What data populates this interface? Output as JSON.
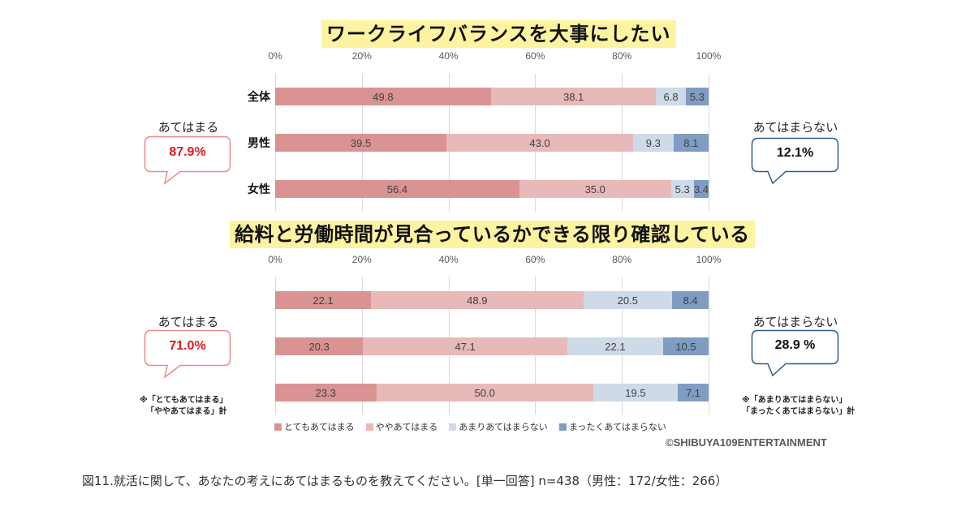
{
  "colors": {
    "very_true": "#d99393",
    "somewhat_true": "#e8b9b9",
    "not_very_true": "#cfdae8",
    "not_true_at_all": "#7f9cc2",
    "agree_box_border": "#ef8a8a",
    "agree_value": "#e01b1b",
    "disagree_box_border": "#2f5b8c",
    "disagree_value": "#111111",
    "title_highlight": "#fdf3a0"
  },
  "legend": [
    {
      "label": "とてもあてはまる",
      "color": "#d99393"
    },
    {
      "label": "ややあてはまる",
      "color": "#e8b9b9"
    },
    {
      "label": "あまりあてはまらない",
      "color": "#cfdae8"
    },
    {
      "label": "まったくあてはまらない",
      "color": "#7f9cc2"
    }
  ],
  "chart_data": [
    {
      "type": "bar",
      "orientation": "horizontal-stacked-100",
      "title": "ワークライフバランスを大事にしたい",
      "x_ticks": [
        "0%",
        "20%",
        "40%",
        "60%",
        "80%",
        "100%"
      ],
      "xlim": [
        0,
        100
      ],
      "grid": true,
      "categories": [
        "全体",
        "男性",
        "女性"
      ],
      "series": [
        {
          "name": "とてもあてはまる",
          "values": [
            49.8,
            39.5,
            56.4
          ]
        },
        {
          "name": "ややあてはまる",
          "values": [
            38.1,
            43.0,
            35.0
          ]
        },
        {
          "name": "あまりあてはまらない",
          "values": [
            6.8,
            9.3,
            5.3
          ]
        },
        {
          "name": "まったくあてはまらない",
          "values": [
            5.3,
            8.1,
            3.4
          ]
        }
      ],
      "callouts": {
        "agree": {
          "label": "あてはまる",
          "value": "87.9%"
        },
        "disagree": {
          "label": "あてはまらない",
          "value": "12.1%"
        }
      }
    },
    {
      "type": "bar",
      "orientation": "horizontal-stacked-100",
      "title": "給料と労働時間が見合っているかできる限り確認している",
      "x_ticks": [
        "0%",
        "20%",
        "40%",
        "60%",
        "80%",
        "100%"
      ],
      "xlim": [
        0,
        100
      ],
      "grid": true,
      "categories": [
        "",
        "",
        ""
      ],
      "series": [
        {
          "name": "とてもあてはまる",
          "values": [
            22.1,
            20.3,
            23.3
          ]
        },
        {
          "name": "ややあてはまる",
          "values": [
            48.9,
            47.1,
            50.0
          ]
        },
        {
          "name": "あまりあてはまらない",
          "values": [
            20.5,
            22.1,
            19.5
          ]
        },
        {
          "name": "まったくあてはまらない",
          "values": [
            8.4,
            10.5,
            7.1
          ]
        }
      ],
      "callouts": {
        "agree": {
          "label": "あてはまる",
          "value": "71.0%"
        },
        "disagree": {
          "label": "あてはまらない",
          "value": "28.9 %"
        }
      }
    }
  ],
  "notes": {
    "agree_line1": "※「とてもあてはまる」",
    "agree_line2": "「ややあてはまる」計",
    "disagree_line1": "※「あまりあてはまらない」",
    "disagree_line2": "「まったくあてはまらない」計"
  },
  "copyright": "©SHIBUYA109ENTERTAINMENT",
  "caption": "図11.就活に関して、あなたの考えにあてはまるものを教えてください。[単一回答]  n=438（男性：172/女性：266）"
}
